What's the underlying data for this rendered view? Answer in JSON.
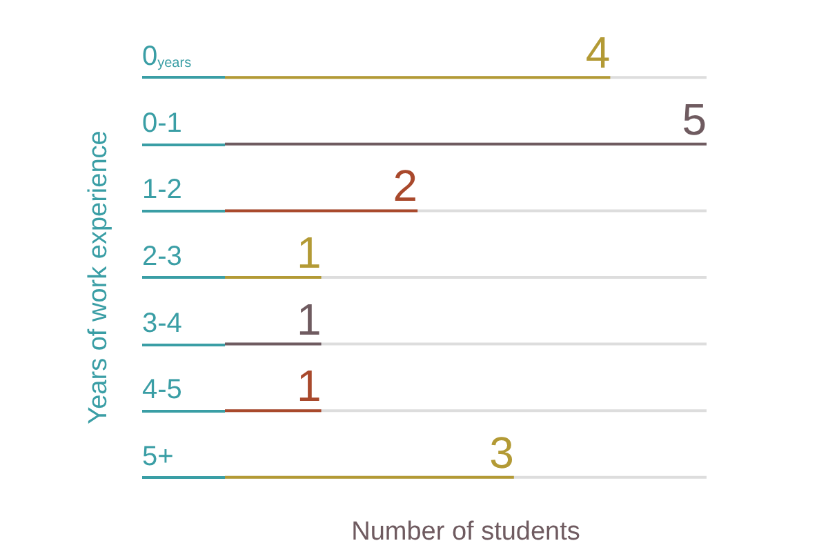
{
  "chart_data": {
    "type": "bar",
    "orientation": "horizontal",
    "xlabel": "Number of students",
    "ylabel": "Years of work experience",
    "categories": [
      "0$_{years}$",
      "0-1",
      "1-2",
      "2-3",
      "3-4",
      "4-5",
      "5+"
    ],
    "values": [
      4,
      5,
      2,
      1,
      1,
      1,
      3
    ],
    "colors": [
      "#b39a35",
      "#6f5b60",
      "#a9492c",
      "#b39a35",
      "#6f5b60",
      "#a9492c",
      "#b39a35"
    ],
    "xlim": [
      0,
      5
    ],
    "tick_labels": "y",
    "data_labels": true,
    "grid": "y"
  }
}
